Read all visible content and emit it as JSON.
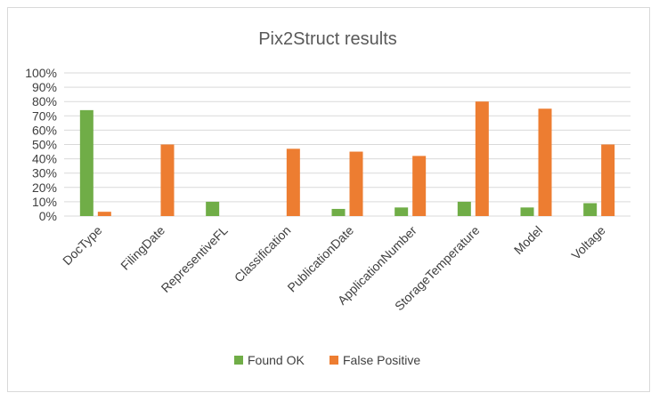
{
  "chart_data": {
    "type": "bar",
    "title": "Pix2Struct results",
    "categories": [
      "DocType",
      "FilingDate",
      "RepresentiveFL",
      "Classification",
      "PublicationDate",
      "ApplicationNumber",
      "StorageTemperature",
      "Model",
      "Voltage"
    ],
    "series": [
      {
        "name": "Found OK",
        "color": "#70ad47",
        "values": [
          74,
          0,
          10,
          0,
          5,
          6,
          10,
          6,
          9
        ]
      },
      {
        "name": "False Positive",
        "color": "#ed7d31",
        "values": [
          3,
          50,
          0,
          47,
          45,
          42,
          80,
          75,
          50
        ]
      }
    ],
    "yticks": [
      "0%",
      "10%",
      "20%",
      "30%",
      "40%",
      "50%",
      "60%",
      "70%",
      "80%",
      "90%",
      "100%"
    ],
    "ylim": [
      0,
      100
    ],
    "xlabel": "",
    "ylabel": "",
    "grid": true,
    "legend_position": "bottom"
  }
}
